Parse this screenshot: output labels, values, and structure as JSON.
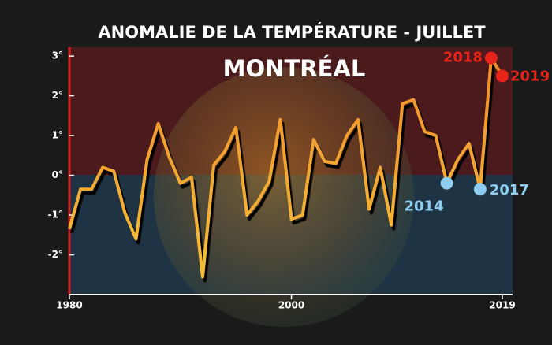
{
  "chart_data": {
    "type": "line",
    "title": "ANOMALIE DE LA TEMPÉRATURE - JUILLET",
    "subtitle": "MONTRÉAL",
    "x": [
      1980,
      1981,
      1982,
      1983,
      1984,
      1985,
      1986,
      1987,
      1988,
      1989,
      1990,
      1991,
      1992,
      1993,
      1994,
      1995,
      1996,
      1997,
      1998,
      1999,
      2000,
      2001,
      2002,
      2003,
      2004,
      2005,
      2006,
      2007,
      2008,
      2009,
      2010,
      2011,
      2012,
      2013,
      2014,
      2015,
      2016,
      2017,
      2018,
      2019
    ],
    "series": [
      {
        "name": null,
        "color": "#f39c2a",
        "values": [
          -1.35,
          -0.35,
          -0.35,
          0.2,
          0.1,
          -0.95,
          -1.6,
          0.4,
          1.3,
          0.45,
          -0.2,
          -0.05,
          -2.55,
          0.25,
          0.6,
          1.2,
          -1.0,
          -0.65,
          -0.15,
          1.4,
          -1.1,
          -1.0,
          0.9,
          0.35,
          0.3,
          1.0,
          1.4,
          -0.85,
          0.2,
          -1.25,
          1.8,
          1.9,
          1.1,
          1.0,
          -0.2,
          0.4,
          0.8,
          -0.35,
          2.95,
          2.5
        ]
      }
    ],
    "highlights": [
      {
        "x": 2018,
        "label": "2018",
        "color": "#e8231a"
      },
      {
        "x": 2019,
        "label": "2019",
        "color": "#e8231a"
      },
      {
        "x": 2014,
        "label": "2014",
        "color": "#8ecdf0"
      },
      {
        "x": 2017,
        "label": "2017",
        "color": "#8ecdf0"
      }
    ],
    "xlim": [
      1980,
      2019
    ],
    "xticks": [
      1980,
      2000,
      2019
    ],
    "ylim": [
      -3,
      3.22
    ],
    "yticks": [
      {
        "value": 3,
        "label": "3°"
      },
      {
        "value": 2,
        "label": "2°"
      },
      {
        "value": 1,
        "label": "1°"
      },
      {
        "value": 0,
        "label": "0°"
      },
      {
        "value": -1,
        "label": "-1°"
      },
      {
        "value": -2,
        "label": "-2°"
      }
    ]
  }
}
